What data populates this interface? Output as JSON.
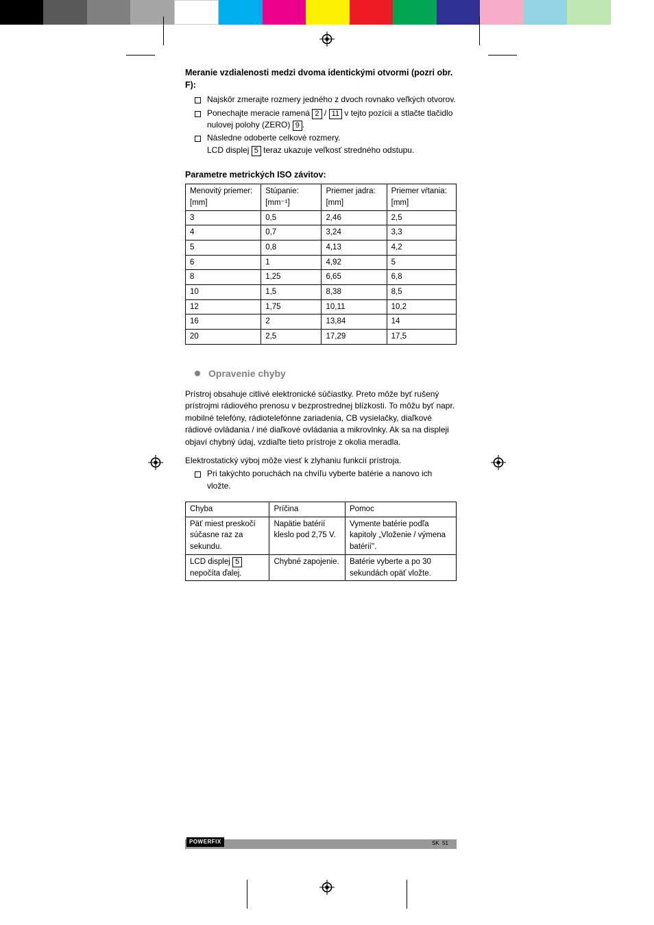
{
  "colorbar": [
    "#000000",
    "#595959",
    "#808080",
    "#a6a6a6",
    "#ffffff",
    "#00aeef",
    "#ec008c",
    "#fff200",
    "#ed1c24",
    "#00a651",
    "#2e3192",
    "#f7adc8",
    "#92d4e6",
    "#c0e6b1",
    "#ffffff"
  ],
  "heading1": "Meranie vzdialenosti medzi dvoma identickými otvormi (pozri obr. F):",
  "bullets1": {
    "b1_a": "Najskôr zmerajte rozmery jedného z dvoch rovnako veľkých otvorov.",
    "b2_a": "Ponechajte meracie ramená ",
    "b2_ref1": "2",
    "b2_mid": " / ",
    "b2_ref2": "11",
    "b2_b": " v tejto pozícii a stlačte tlačidlo nulovej polohy (ZERO) ",
    "b2_ref3": "9",
    "b2_c": ".",
    "b3_a": "Následne odoberte celkové rozmery.",
    "b3_b1": "LCD displej ",
    "b3_ref": "5",
    "b3_b2": " teraz ukazuje veľkosť stredného odstupu."
  },
  "heading2": "Parametre metrických ISO závitov:",
  "table1": {
    "h1": "Menovitý priemer: [mm]",
    "h2": "Stúpanie: [mm⁻¹]",
    "h3": "Priemer jadra: [mm]",
    "h4": "Priemer vŕtania: [mm]",
    "rows": [
      [
        "3",
        "0,5",
        "2,46",
        "2,5"
      ],
      [
        "4",
        "0,7",
        "3,24",
        "3,3"
      ],
      [
        "5",
        "0,8",
        "4,13",
        "4,2"
      ],
      [
        "6",
        "1",
        "4,92",
        "5"
      ],
      [
        "8",
        "1,25",
        "6,65",
        "6,8"
      ],
      [
        "10",
        "1,5",
        "8,38",
        "8,5"
      ],
      [
        "12",
        "1,75",
        "10,11",
        "10,2"
      ],
      [
        "16",
        "2",
        "13,84",
        "14"
      ],
      [
        "20",
        "2,5",
        "17,29",
        "17,5"
      ]
    ]
  },
  "section1": "Opravenie chyby",
  "para1": "Prístroj obsahuje citlivé elektronické súčiastky. Preto môže byť rušený prístrojmi rádiového prenosu v bezprostrednej blízkosti. To môžu byť napr. mobilné telefóny, rádiotelefónne zariadenia, CB vysielačky, diaľkové rádiové ovládania / iné diaľkové ovládania a mikrovlnky. Ak sa na displeji objaví chybný údaj, vzdiaľte tieto prístroje z okolia meradla.",
  "para2": "Elektrostatický výboj môže viesť k zlyhaniu funkcií prístroja.",
  "bullet2": "Pri takýchto poruchách na chvíľu vyberte batérie a nanovo ich vložte.",
  "table2": {
    "h1": "Chyba",
    "h2": "Príčina",
    "h3": "Pomoc",
    "r1c1": "Päť miest preskočí súčasne raz za sekundu.",
    "r1c2": "Napätie batérií kleslo pod 2,75 V.",
    "r1c3": "Vymente batérie podľa kapitoly „Vloženie / výmena batérií\".",
    "r2c1a": "LCD displej ",
    "r2c1ref": "5",
    "r2c1b": " nepočíta ďalej.",
    "r2c2": "Chybné zapojenie.",
    "r2c3": "Batérie vyberte a po 30 sekundách opäť vložte."
  },
  "footer": {
    "logo": "POWERFIX",
    "page_lang": "SK",
    "page_num": "51"
  }
}
